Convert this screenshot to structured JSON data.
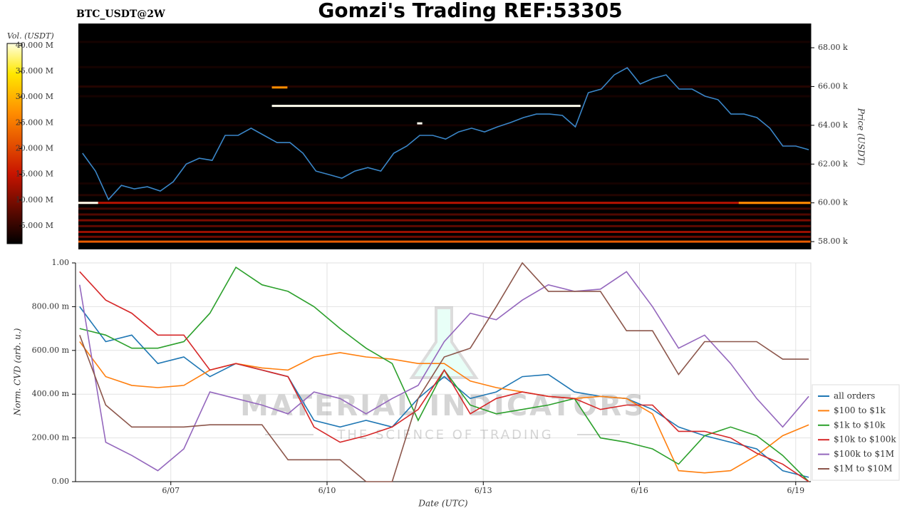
{
  "chart_data": [
    {
      "type": "heatmap",
      "title": "Gomzi's Trading REF:53305",
      "subtitle": "BTC_USDT@2W",
      "colorbar_label": "Vol. (USDT)",
      "clim": [
        1540000,
        40400000
      ],
      "colorbar_ticks": [
        {
          "value": 5000000,
          "label": "5.000 M"
        },
        {
          "value": 10000000,
          "label": "10.000 M"
        },
        {
          "value": 15000000,
          "label": "15.000 M"
        },
        {
          "value": 20000000,
          "label": "20.000 M"
        },
        {
          "value": 25000000,
          "label": "25.000 M"
        },
        {
          "value": 30000000,
          "label": "30.000 M"
        },
        {
          "value": 35000000,
          "label": "35.000 M"
        },
        {
          "value": 40000000,
          "label": "40.000 M"
        }
      ],
      "y_label": "Price (USDT)",
      "ylim": [
        57600,
        69250
      ],
      "yticks": [
        {
          "value": 58000,
          "label": "58.00 k"
        },
        {
          "value": 60000,
          "label": "60.00 k"
        },
        {
          "value": 62000,
          "label": "62.00 k"
        },
        {
          "value": 64000,
          "label": "64.00 k"
        },
        {
          "value": 66000,
          "label": "66.00 k"
        },
        {
          "value": 68000,
          "label": "68.00 k"
        }
      ],
      "xlim": [
        5.17,
        19.29
      ],
      "line_color": "#3a86c8",
      "x": [
        5.25,
        5.5,
        5.75,
        6,
        6.25,
        6.5,
        6.75,
        7,
        7.25,
        7.5,
        7.75,
        8,
        8.25,
        8.5,
        8.75,
        9,
        9.25,
        9.5,
        9.75,
        10,
        10.25,
        10.5,
        10.75,
        11,
        11.25,
        11.5,
        11.75,
        12,
        12.25,
        12.5,
        12.75,
        13,
        13.25,
        13.5,
        13.75,
        14,
        14.25,
        14.5,
        14.75,
        15,
        15.25,
        15.5,
        15.75,
        16,
        16.25,
        16.5,
        16.75,
        17,
        17.25,
        17.5,
        17.75,
        18,
        18.25,
        18.5,
        18.75,
        19,
        19.25
      ],
      "values": [
        62560,
        61640,
        60170,
        60900,
        60720,
        60830,
        60610,
        61090,
        62000,
        62300,
        62190,
        63480,
        63480,
        63850,
        63480,
        63110,
        63110,
        62560,
        61640,
        61460,
        61270,
        61640,
        61820,
        61640,
        62560,
        62930,
        63480,
        63480,
        63290,
        63660,
        63850,
        63660,
        63920,
        64140,
        64400,
        64580,
        64580,
        64510,
        63920,
        65680,
        65870,
        66600,
        66970,
        66130,
        66420,
        66600,
        65870,
        65870,
        65500,
        65320,
        64580,
        64580,
        64400,
        63850,
        62930,
        62930,
        62740
      ],
      "heat_prices": [
        58000,
        58250,
        58500,
        58800,
        59100,
        59400,
        59700,
        60000,
        60400,
        61000,
        62000,
        63000,
        64000,
        65500,
        66000,
        67000,
        68300
      ],
      "heat_volumes": [
        22000000,
        9000000,
        12000000,
        8000000,
        10000000,
        7000000,
        6000000,
        14000000,
        4000000,
        3000000,
        3000000,
        2500000,
        3000000,
        3000000,
        4000000,
        3000000,
        3000000
      ],
      "orders": [
        {
          "x": [
            8.9,
            14.85
          ],
          "price": 65000,
          "volume": 40000000
        },
        {
          "x": [
            5.17,
            5.55
          ],
          "price": 60000,
          "volume": 40000000
        },
        {
          "x": [
            11.7,
            11.8
          ],
          "price": 64100,
          "volume": 40000000
        },
        {
          "x": [
            8.9,
            9.2
          ],
          "price": 65950,
          "volume": 27000000
        },
        {
          "x": [
            17.9,
            19.29
          ],
          "price": 60000,
          "volume": 27000000
        }
      ]
    },
    {
      "type": "line",
      "x_label": "Date (UTC)",
      "y_label": "Norm. CVD (arb. u.)",
      "watermark": "MATERIAL INDICATORS",
      "watermark_sub": "THE SCIENCE OF TRADING",
      "xlim": [
        5.17,
        19.29
      ],
      "ylim": [
        0,
        1
      ],
      "grid": true,
      "legend": "right",
      "xticks": [
        {
          "value": 7,
          "label": "6/07"
        },
        {
          "value": 10,
          "label": "6/10"
        },
        {
          "value": 13,
          "label": "6/13"
        },
        {
          "value": 16,
          "label": "6/16"
        },
        {
          "value": 19,
          "label": "6/19"
        }
      ],
      "yticks": [
        {
          "value": 0,
          "label": "0.00"
        },
        {
          "value": 0.2,
          "label": "200.00 m"
        },
        {
          "value": 0.4,
          "label": "400.00 m"
        },
        {
          "value": 0.6,
          "label": "600.00 m"
        },
        {
          "value": 0.8,
          "label": "800.00 m"
        },
        {
          "value": 1,
          "label": "1.00"
        }
      ],
      "x": [
        5.25,
        5.75,
        6.25,
        6.75,
        7.25,
        7.75,
        8.25,
        8.75,
        9.25,
        9.75,
        10.25,
        10.75,
        11.25,
        11.75,
        12.25,
        12.75,
        13.25,
        13.75,
        14.25,
        14.75,
        15.25,
        15.75,
        16.25,
        16.75,
        17.25,
        17.75,
        18.25,
        18.75,
        19.25
      ],
      "series": [
        {
          "name": "all orders",
          "color": "#1f77b4",
          "values": [
            0.8,
            0.64,
            0.67,
            0.54,
            0.57,
            0.48,
            0.54,
            0.51,
            0.48,
            0.28,
            0.25,
            0.28,
            0.25,
            0.38,
            0.48,
            0.38,
            0.41,
            0.48,
            0.49,
            0.41,
            0.39,
            0.38,
            0.33,
            0.25,
            0.21,
            0.18,
            0.15,
            0.05,
            0.02
          ]
        },
        {
          "name": "$100 to $1k",
          "color": "#ff7f0e",
          "values": [
            0.64,
            0.48,
            0.44,
            0.43,
            0.44,
            0.51,
            0.54,
            0.52,
            0.51,
            0.57,
            0.59,
            0.57,
            0.56,
            0.54,
            0.54,
            0.46,
            0.43,
            0.41,
            0.39,
            0.38,
            0.39,
            0.38,
            0.31,
            0.05,
            0.04,
            0.05,
            0.12,
            0.21,
            0.26
          ]
        },
        {
          "name": "$1k to $10k",
          "color": "#2ca02c",
          "values": [
            0.7,
            0.67,
            0.61,
            0.61,
            0.64,
            0.77,
            0.98,
            0.9,
            0.87,
            0.8,
            0.7,
            0.61,
            0.54,
            0.28,
            0.51,
            0.35,
            0.31,
            0.33,
            0.35,
            0.38,
            0.2,
            0.18,
            0.15,
            0.08,
            0.21,
            0.25,
            0.21,
            0.12,
            0.0
          ]
        },
        {
          "name": "$10k to $100k",
          "color": "#d62728",
          "values": [
            0.96,
            0.83,
            0.77,
            0.67,
            0.67,
            0.51,
            0.54,
            0.51,
            0.48,
            0.25,
            0.18,
            0.21,
            0.25,
            0.33,
            0.51,
            0.31,
            0.38,
            0.41,
            0.39,
            0.38,
            0.33,
            0.35,
            0.35,
            0.23,
            0.23,
            0.2,
            0.13,
            0.08,
            0.0
          ]
        },
        {
          "name": "$100k to $1M",
          "color": "#9467bd",
          "values": [
            0.9,
            0.18,
            0.12,
            0.05,
            0.15,
            0.41,
            0.38,
            0.35,
            0.31,
            0.41,
            0.38,
            0.31,
            0.38,
            0.44,
            0.64,
            0.77,
            0.74,
            0.83,
            0.9,
            0.87,
            0.88,
            0.96,
            0.8,
            0.61,
            0.67,
            0.54,
            0.38,
            0.25,
            0.39
          ]
        },
        {
          "name": "$1M to $10M",
          "color": "#8c564b",
          "values": [
            0.67,
            0.35,
            0.25,
            0.25,
            0.25,
            0.26,
            0.26,
            0.26,
            0.1,
            0.1,
            0.1,
            0,
            0,
            0.38,
            0.57,
            0.61,
            0.8,
            1.0,
            0.87,
            0.87,
            0.87,
            0.69,
            0.69,
            0.49,
            0.64,
            0.64,
            0.64,
            0.56,
            0.56
          ]
        }
      ]
    }
  ]
}
